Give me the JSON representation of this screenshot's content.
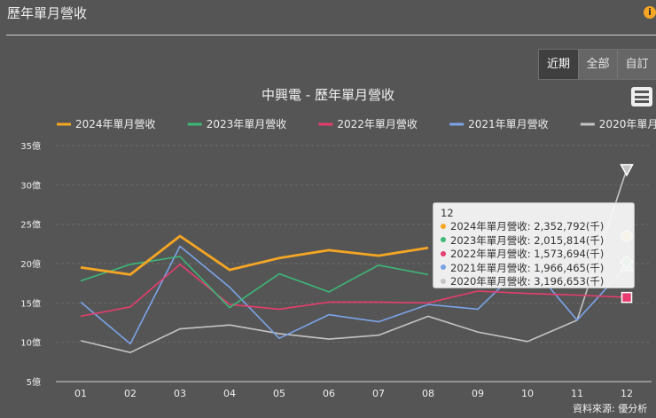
{
  "header": {
    "title": "歷年單月營收",
    "info_icon": "info-icon"
  },
  "range_buttons": [
    "近期",
    "全部",
    "自訂"
  ],
  "active_range": 0,
  "source_text": "資料來源: 優分析",
  "chart_data": {
    "type": "line",
    "title": "中興電 - 歷年單月營收",
    "categories": [
      "01",
      "02",
      "03",
      "04",
      "05",
      "06",
      "07",
      "08",
      "09",
      "10",
      "11",
      "12"
    ],
    "y_tick_labels": [
      "5億",
      "10億",
      "15億",
      "20億",
      "25億",
      "30億",
      "35億"
    ],
    "y_ticks": [
      5,
      10,
      15,
      20,
      25,
      30,
      35
    ],
    "ylim": [
      5,
      35
    ],
    "grid": true,
    "legend_position": "top",
    "series": [
      {
        "name": "2024年單月營收",
        "color": "#f5a623",
        "marker": "circle",
        "values": [
          19.5,
          18.6,
          23.5,
          19.2,
          20.7,
          21.7,
          21.0,
          22.0,
          null,
          null,
          null,
          23.5
        ]
      },
      {
        "name": "2023年單月營收",
        "color": "#3cb878",
        "marker": "diamond",
        "values": [
          17.8,
          19.9,
          20.9,
          14.4,
          18.7,
          16.4,
          19.8,
          18.6,
          null,
          null,
          null,
          20.2
        ]
      },
      {
        "name": "2022年單月營收",
        "color": "#e63d6e",
        "marker": "square",
        "values": [
          13.3,
          14.5,
          19.9,
          14.8,
          14.2,
          15.1,
          15.1,
          15.0,
          16.5,
          16.2,
          16.0,
          15.7
        ]
      },
      {
        "name": "2021年單月營收",
        "color": "#7ba3e8",
        "marker": "triangle",
        "values": [
          15.1,
          9.8,
          22.2,
          17.0,
          10.5,
          13.5,
          12.6,
          14.8,
          14.2,
          20.3,
          12.8,
          19.7
        ]
      },
      {
        "name": "2020年單月營收",
        "color": "#c4c4c4",
        "marker": "triangle-down",
        "values": [
          10.2,
          8.7,
          11.7,
          12.2,
          11.1,
          10.4,
          10.9,
          13.3,
          11.3,
          10.1,
          12.8,
          32.0
        ]
      }
    ],
    "tooltip": {
      "header": "12",
      "rows": [
        {
          "label": "2024年單月營收",
          "value": "2,352,792(千)",
          "color": "#f5a623"
        },
        {
          "label": "2023年單月營收",
          "value": "2,015,814(千)",
          "color": "#3cb878"
        },
        {
          "label": "2022年單月營收",
          "value": "1,573,694(千)",
          "color": "#e63d6e"
        },
        {
          "label": "2021年單月營收",
          "value": "1,966,465(千)",
          "color": "#7ba3e8"
        },
        {
          "label": "2020年單月營收",
          "value": "3,196,653(千)",
          "color": "#c4c4c4"
        }
      ]
    }
  }
}
